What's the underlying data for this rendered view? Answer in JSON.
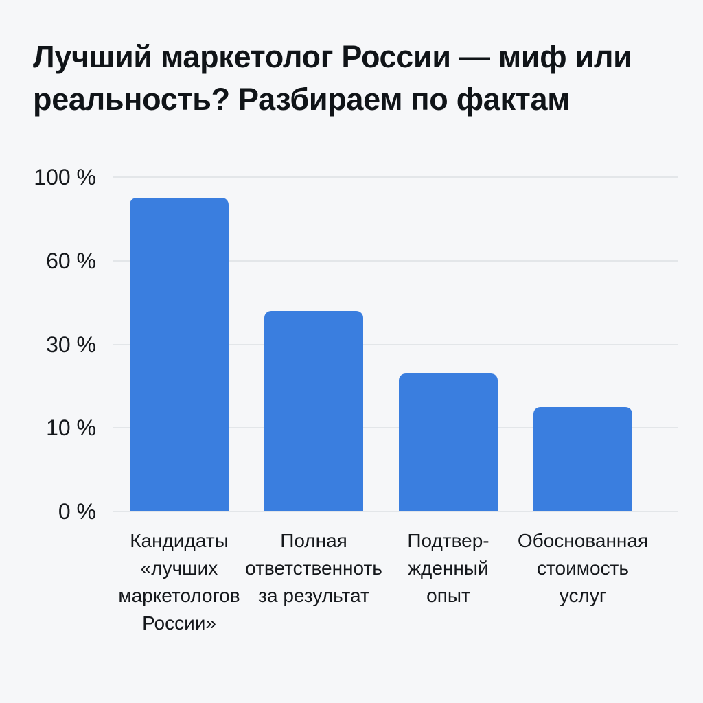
{
  "header": {
    "title_lines": [
      "Лучший маркетолог России — миф или",
      "реальность? Разбираем по фактам"
    ]
  },
  "chart_data": {
    "type": "bar",
    "title": "Лучший маркетолог России — миф или реальность? Разбираем по фактам",
    "categories": [
      "Кандидаты «лучших маркетологов России»",
      "Полная ответственноть за результат",
      "Подтвер-жденный опыт",
      "Обоснованная стоимость услуг"
    ],
    "category_lines": [
      [
        "Кандидаты",
        "«лучших",
        "маркетологов",
        "России»"
      ],
      [
        "Полная",
        "ответственноть",
        "за результат"
      ],
      [
        "Подтвер-",
        "жденный",
        "опыт"
      ],
      [
        "Обоснованная",
        "стоимость",
        "услуг"
      ]
    ],
    "values": [
      90,
      42,
      23,
      15
    ],
    "unit": "%",
    "xlabel": "",
    "ylabel": "",
    "y_ticks": [
      {
        "label": "0 %",
        "value": 0
      },
      {
        "label": "10 %",
        "value": 10
      },
      {
        "label": "30 %",
        "value": 30
      },
      {
        "label": "60 %",
        "value": 60
      },
      {
        "label": "100 %",
        "value": 100
      }
    ],
    "axis_note": "y-axis ticks are evenly spaced although their values (0,10,30,60,100) are non-linear; bar heights follow this distorted scale",
    "grid": true,
    "legend": false,
    "colors": {
      "bar": "#3A7EDF",
      "gridline": "#E3E6E9",
      "text": "#15181C",
      "title_text": "#101418",
      "background": "#F6F7F9"
    }
  }
}
